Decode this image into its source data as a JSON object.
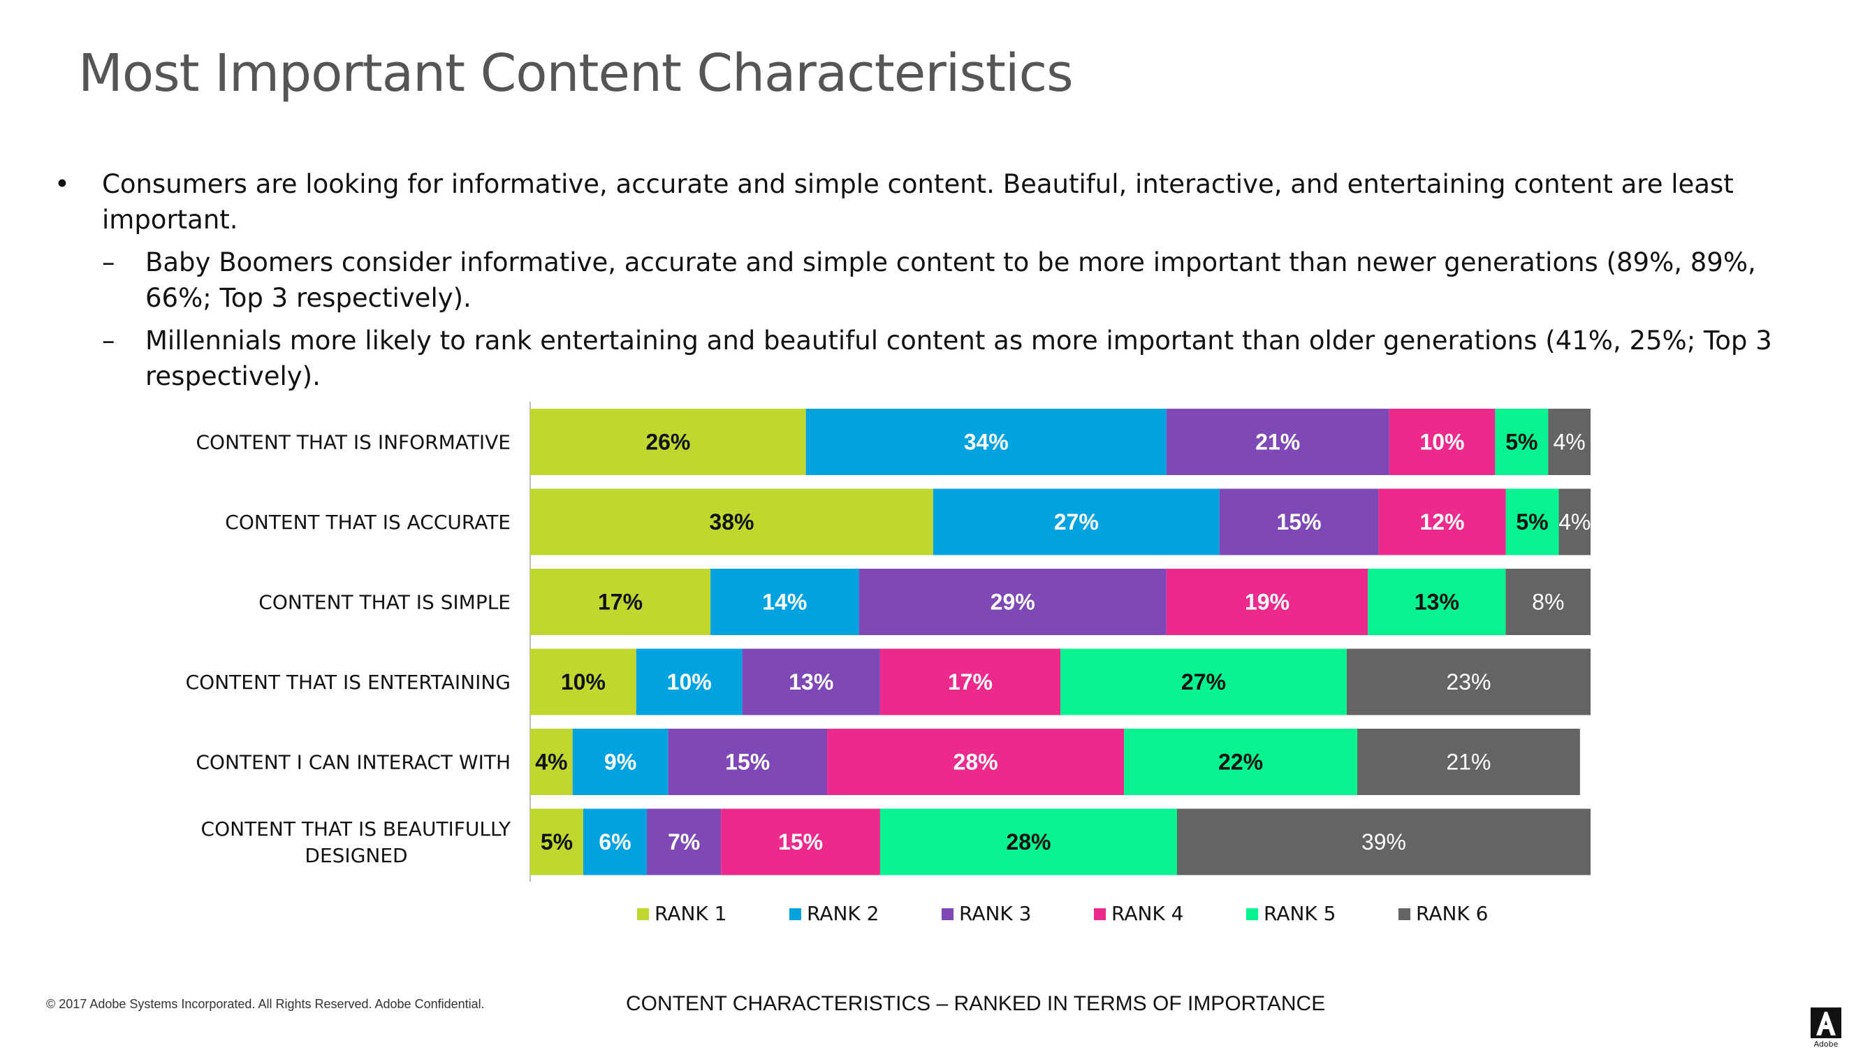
{
  "title": "Most Important Content Characteristics",
  "bullets": {
    "main": "Consumers are looking for informative, accurate and simple content. Beautiful, interactive, and entertaining content are least important.",
    "sub": [
      "Baby Boomers consider informative, accurate and simple content to be more important than newer generations (89%, 89%, 66%; Top 3 respectively).",
      "Millennials more likely to rank entertaining and beautiful content as more important than older generations (41%, 25%; Top 3 respectively)."
    ]
  },
  "chart_data": {
    "type": "bar",
    "orientation": "horizontal",
    "stacked": true,
    "title": "CONTENT CHARACTERISTICS – RANKED IN TERMS OF IMPORTANCE",
    "categories": [
      "CONTENT THAT IS INFORMATIVE",
      "CONTENT THAT IS ACCURATE",
      "CONTENT THAT IS SIMPLE",
      "CONTENT THAT IS ENTERTAINING",
      "CONTENT I CAN INTERACT WITH",
      "CONTENT THAT IS BEAUTIFULLY DESIGNED"
    ],
    "series": [
      {
        "name": "RANK 1",
        "color": "#c0d72f",
        "label_color": "#111111",
        "values": [
          26,
          38,
          17,
          10,
          4,
          5
        ]
      },
      {
        "name": "RANK 2",
        "color": "#00a3e0",
        "label_color": "#ffffff",
        "values": [
          34,
          27,
          14,
          10,
          9,
          6
        ]
      },
      {
        "name": "RANK 3",
        "color": "#7e49b6",
        "label_color": "#ffffff",
        "values": [
          21,
          15,
          29,
          13,
          15,
          7
        ]
      },
      {
        "name": "RANK 4",
        "color": "#ec2a8c",
        "label_color": "#ffffff",
        "values": [
          10,
          12,
          19,
          17,
          28,
          15
        ]
      },
      {
        "name": "RANK 5",
        "color": "#06f38f",
        "label_color": "#111111",
        "values": [
          5,
          5,
          13,
          27,
          22,
          28
        ]
      },
      {
        "name": "RANK 6",
        "color": "#646464",
        "label_color": "#ffffff",
        "values": [
          4,
          4,
          8,
          23,
          21,
          39
        ]
      }
    ],
    "legend_position": "bottom",
    "xlim": [
      0,
      100
    ],
    "value_suffix": "%"
  },
  "footer": "© 2017 Adobe Systems Incorporated.  All Rights Reserved.  Adobe Confidential.",
  "logo_text": "Adobe"
}
